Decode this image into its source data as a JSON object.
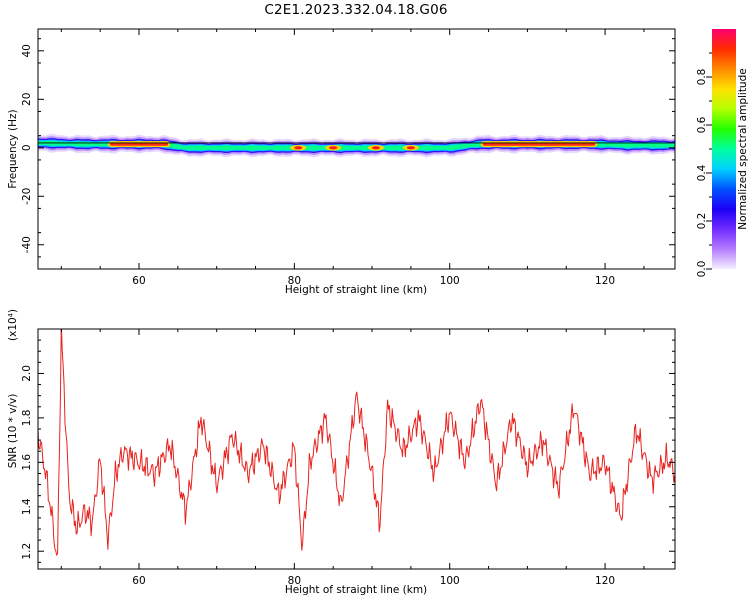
{
  "title": "C2E1.2023.332.04.18.G06",
  "chart_data": [
    {
      "type": "heatmap",
      "xlabel": "Height of straight line (km)",
      "ylabel": "Frequency (Hz)",
      "xlim": [
        47,
        129
      ],
      "ylim": [
        -50,
        49
      ],
      "xticks": [
        60,
        80,
        100,
        120
      ],
      "yticks": [
        -40,
        -20,
        0,
        20,
        40
      ],
      "colorbar": {
        "label": "Normalized spectral amplitude",
        "range": [
          0,
          1
        ],
        "ticks": [
          "0.0",
          "0.2",
          "0.4",
          "0.6",
          "0.8"
        ],
        "colors": [
          "#f4eeff",
          "#b57cff",
          "#6f2bff",
          "#1b00f5",
          "#0052ff",
          "#00d2ff",
          "#00ff9c",
          "#24ff00",
          "#b4ff00",
          "#ffe000",
          "#ff8a00",
          "#ff2a00",
          "#ff006e"
        ]
      },
      "band": {
        "center_hz": [
          [
            47,
            2.0
          ],
          [
            53,
            1.5
          ],
          [
            56,
            1.5
          ],
          [
            63,
            1.5
          ],
          [
            66,
            0
          ],
          [
            100,
            0
          ],
          [
            104,
            1.5
          ],
          [
            118,
            1.5
          ],
          [
            123,
            1.0
          ],
          [
            129,
            1.0
          ]
        ],
        "hot_segments_km": [
          [
            56,
            64
          ],
          [
            104,
            119
          ]
        ],
        "spots_km": [
          80.5,
          85,
          90.5,
          95
        ],
        "overlay_line_hz": 2.0
      }
    },
    {
      "type": "line",
      "xlabel": "Height of straight line (km)",
      "ylabel": "SNR (10 * v/v)",
      "y_multiplier": "(x10⁴)",
      "xlim": [
        47,
        129
      ],
      "ylim": [
        1.12,
        2.2
      ],
      "xticks": [
        60,
        80,
        100,
        120
      ],
      "yticks": [
        "1.2",
        "1.4",
        "1.6",
        "1.8",
        "2.0"
      ],
      "line_color": "#e8231f",
      "x": [
        47,
        48,
        49,
        49.5,
        50,
        51,
        52,
        53,
        54,
        55,
        56,
        57,
        58,
        60,
        62,
        64,
        66,
        68,
        70,
        72,
        74,
        76,
        78,
        80,
        81,
        82,
        84,
        86,
        88,
        90,
        91,
        92,
        94,
        96,
        98,
        100,
        102,
        104,
        106,
        108,
        110,
        112,
        114,
        116,
        118,
        120,
        122,
        124,
        126,
        128,
        129
      ],
      "y": [
        1.73,
        1.55,
        1.3,
        1.13,
        2.19,
        1.45,
        1.3,
        1.38,
        1.33,
        1.62,
        1.25,
        1.55,
        1.65,
        1.6,
        1.55,
        1.68,
        1.38,
        1.8,
        1.5,
        1.72,
        1.55,
        1.68,
        1.45,
        1.67,
        1.22,
        1.6,
        1.8,
        1.4,
        1.9,
        1.55,
        1.32,
        1.85,
        1.65,
        1.8,
        1.55,
        1.82,
        1.6,
        1.88,
        1.5,
        1.8,
        1.58,
        1.7,
        1.48,
        1.85,
        1.55,
        1.6,
        1.35,
        1.75,
        1.52,
        1.62,
        1.55
      ]
    }
  ]
}
